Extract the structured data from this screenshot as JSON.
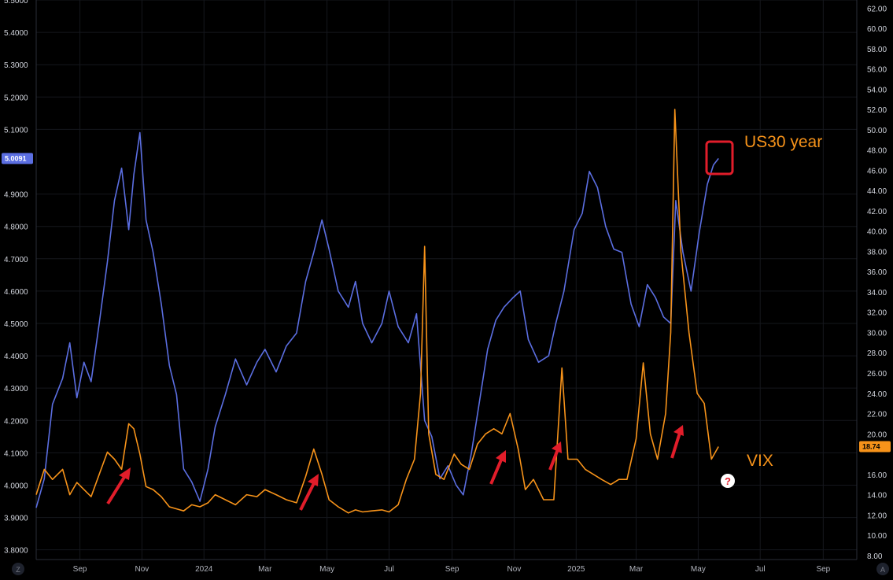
{
  "chart_data": {
    "type": "line",
    "x_ticks": [
      "Sep",
      "Nov",
      "2024",
      "Mar",
      "May",
      "Jul",
      "Sep",
      "Nov",
      "2025",
      "Mar",
      "May",
      "Jul",
      "Sep"
    ],
    "left_axis": {
      "ticks": [
        "5.5000",
        "5.4000",
        "5.3000",
        "5.2000",
        "5.1000",
        "4.9000",
        "4.8000",
        "4.7000",
        "4.6000",
        "4.5000",
        "4.4000",
        "4.3000",
        "4.2000",
        "4.1000",
        "4.0000",
        "3.9000",
        "3.8000"
      ],
      "range": [
        3.77,
        5.5
      ]
    },
    "right_axis": {
      "ticks": [
        "62.00",
        "60.00",
        "58.00",
        "56.00",
        "54.00",
        "52.00",
        "50.00",
        "48.00",
        "46.00",
        "44.00",
        "42.00",
        "40.00",
        "38.00",
        "36.00",
        "34.00",
        "32.00",
        "30.00",
        "28.00",
        "26.00",
        "24.00",
        "22.00",
        "20.00",
        "16.00",
        "14.00",
        "12.00",
        "10.00",
        "8.00"
      ],
      "range": [
        7.6,
        62.8
      ]
    },
    "series": [
      {
        "name": "US30 year",
        "axis": "left",
        "color": "#5b6ee1",
        "last_value_label": "5.0091",
        "x": [
          "2023-07-20",
          "2023-07-28",
          "2023-08-05",
          "2023-08-15",
          "2023-08-22",
          "2023-08-29",
          "2023-09-05",
          "2023-09-12",
          "2023-09-20",
          "2023-09-28",
          "2023-10-05",
          "2023-10-12",
          "2023-10-19",
          "2023-10-24",
          "2023-10-30",
          "2023-11-05",
          "2023-11-12",
          "2023-11-20",
          "2023-11-28",
          "2023-12-05",
          "2023-12-12",
          "2023-12-20",
          "2023-12-28",
          "2024-01-05",
          "2024-01-12",
          "2024-01-22",
          "2024-02-01",
          "2024-02-12",
          "2024-02-22",
          "2024-03-01",
          "2024-03-12",
          "2024-03-22",
          "2024-04-01",
          "2024-04-10",
          "2024-04-18",
          "2024-04-26",
          "2024-05-03",
          "2024-05-12",
          "2024-05-22",
          "2024-05-29",
          "2024-06-05",
          "2024-06-14",
          "2024-06-24",
          "2024-07-01",
          "2024-07-10",
          "2024-07-20",
          "2024-07-28",
          "2024-08-05",
          "2024-08-12",
          "2024-08-20",
          "2024-08-28",
          "2024-09-05",
          "2024-09-12",
          "2024-09-20",
          "2024-09-28",
          "2024-10-06",
          "2024-10-14",
          "2024-10-22",
          "2024-10-31",
          "2024-11-07",
          "2024-11-15",
          "2024-11-25",
          "2024-12-05",
          "2024-12-12",
          "2024-12-20",
          "2024-12-30",
          "2025-01-07",
          "2025-01-14",
          "2025-01-22",
          "2025-01-30",
          "2025-02-07",
          "2025-02-15",
          "2025-02-24",
          "2025-03-04",
          "2025-03-12",
          "2025-03-20",
          "2025-03-28",
          "2025-04-04",
          "2025-04-09",
          "2025-04-16",
          "2025-04-24",
          "2025-05-02",
          "2025-05-10",
          "2025-05-16",
          "2025-05-21"
        ],
        "values": [
          3.93,
          4.02,
          4.25,
          4.33,
          4.44,
          4.27,
          4.38,
          4.32,
          4.5,
          4.69,
          4.88,
          4.98,
          4.79,
          4.96,
          5.09,
          4.82,
          4.72,
          4.56,
          4.37,
          4.28,
          4.05,
          4.01,
          3.95,
          4.05,
          4.18,
          4.28,
          4.39,
          4.31,
          4.38,
          4.42,
          4.35,
          4.43,
          4.47,
          4.63,
          4.72,
          4.82,
          4.73,
          4.6,
          4.55,
          4.63,
          4.5,
          4.44,
          4.5,
          4.6,
          4.49,
          4.44,
          4.53,
          4.2,
          4.15,
          4.02,
          4.06,
          4.0,
          3.97,
          4.1,
          4.26,
          4.42,
          4.51,
          4.55,
          4.58,
          4.6,
          4.45,
          4.38,
          4.4,
          4.5,
          4.6,
          4.79,
          4.84,
          4.97,
          4.92,
          4.8,
          4.73,
          4.72,
          4.56,
          4.49,
          4.62,
          4.58,
          4.52,
          4.5,
          4.88,
          4.72,
          4.6,
          4.78,
          4.93,
          4.99,
          5.01
        ]
      },
      {
        "name": "VIX",
        "axis": "right",
        "color": "#f7931a",
        "last_value_label": "18.74",
        "x": [
          "2023-07-20",
          "2023-07-28",
          "2023-08-05",
          "2023-08-15",
          "2023-08-22",
          "2023-08-29",
          "2023-09-05",
          "2023-09-12",
          "2023-09-20",
          "2023-09-28",
          "2023-10-05",
          "2023-10-12",
          "2023-10-19",
          "2023-10-24",
          "2023-10-30",
          "2023-11-05",
          "2023-11-12",
          "2023-11-20",
          "2023-11-28",
          "2023-12-05",
          "2023-12-12",
          "2023-12-20",
          "2023-12-28",
          "2024-01-05",
          "2024-01-12",
          "2024-01-22",
          "2024-02-01",
          "2024-02-12",
          "2024-02-22",
          "2024-03-01",
          "2024-03-12",
          "2024-03-22",
          "2024-04-01",
          "2024-04-10",
          "2024-04-18",
          "2024-04-26",
          "2024-05-03",
          "2024-05-12",
          "2024-05-22",
          "2024-05-29",
          "2024-06-05",
          "2024-06-14",
          "2024-06-24",
          "2024-07-01",
          "2024-07-10",
          "2024-07-18",
          "2024-07-26",
          "2024-08-01",
          "2024-08-05",
          "2024-08-09",
          "2024-08-16",
          "2024-08-24",
          "2024-09-03",
          "2024-09-10",
          "2024-09-18",
          "2024-09-26",
          "2024-10-04",
          "2024-10-12",
          "2024-10-20",
          "2024-10-28",
          "2024-11-05",
          "2024-11-12",
          "2024-11-20",
          "2024-11-30",
          "2024-12-10",
          "2024-12-18",
          "2024-12-24",
          "2025-01-02",
          "2025-01-10",
          "2025-01-18",
          "2025-01-26",
          "2025-02-04",
          "2025-02-12",
          "2025-02-20",
          "2025-03-01",
          "2025-03-08",
          "2025-03-15",
          "2025-03-22",
          "2025-03-30",
          "2025-04-04",
          "2025-04-08",
          "2025-04-14",
          "2025-04-22",
          "2025-04-30",
          "2025-05-07",
          "2025-05-14",
          "2025-05-21"
        ],
        "values": [
          14.0,
          16.5,
          15.5,
          16.5,
          14.0,
          15.2,
          14.5,
          13.8,
          16.0,
          18.2,
          17.5,
          16.5,
          21.0,
          20.5,
          18.0,
          14.8,
          14.5,
          13.8,
          12.8,
          12.6,
          12.4,
          13.0,
          12.8,
          13.2,
          14.0,
          13.5,
          13.0,
          14.0,
          13.8,
          14.5,
          14.0,
          13.5,
          13.2,
          15.8,
          18.5,
          16.0,
          13.5,
          12.8,
          12.2,
          12.5,
          12.3,
          12.4,
          12.5,
          12.3,
          13.0,
          15.5,
          17.5,
          24.0,
          38.5,
          20.0,
          16.0,
          15.5,
          18.0,
          17.0,
          16.5,
          19.0,
          20.0,
          20.5,
          20.0,
          22.0,
          18.5,
          14.5,
          15.5,
          13.5,
          13.5,
          26.5,
          17.5,
          17.5,
          16.5,
          16.0,
          15.5,
          15.0,
          15.5,
          15.5,
          19.5,
          27.0,
          20.0,
          17.5,
          22.0,
          30.0,
          52.0,
          38.0,
          30.0,
          24.0,
          23.0,
          17.5,
          18.74
        ]
      }
    ],
    "annotations": {
      "us30_label": "US30 year",
      "vix_label": "VIX",
      "question_mark": "?"
    },
    "grid": true,
    "background": "#000000"
  }
}
